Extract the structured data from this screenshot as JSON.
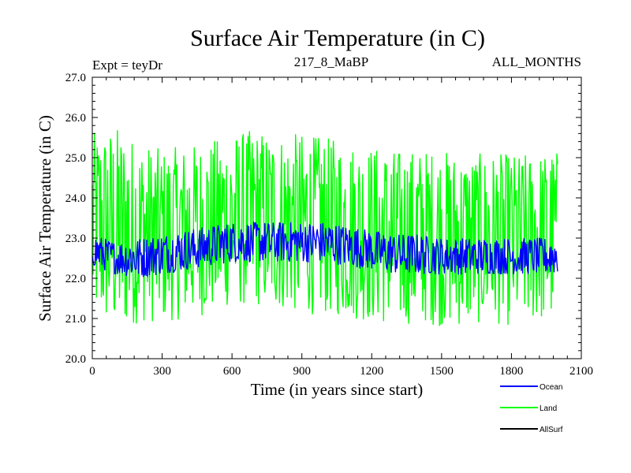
{
  "chart_data": {
    "type": "line",
    "title": "Surface Air Temperature (in C)",
    "subtitle_left": "Expt = teyDr",
    "subtitle_center": "217_8_MaBP",
    "subtitle_right": "ALL_MONTHS",
    "xlabel": "Time (in years since start)",
    "ylabel": "Surface Air Temperature (in C)",
    "xlim": [
      0,
      2100
    ],
    "ylim": [
      20.0,
      27.0
    ],
    "x_ticks": [
      0,
      300,
      600,
      900,
      1200,
      1500,
      1800,
      2100
    ],
    "x_tick_labels": [
      "0",
      "300",
      "600",
      "900",
      "1200",
      "1500",
      "1800",
      "2100"
    ],
    "y_ticks": [
      20,
      21,
      22,
      23,
      24,
      25,
      26,
      27
    ],
    "y_tick_labels": [
      "20.0",
      "21.0",
      "22.0",
      "23.0",
      "24.0",
      "25.0",
      "26.0",
      "27.0"
    ],
    "legend_position": "bottom-right, outside plot",
    "series": [
      {
        "name": "Land",
        "color": "#00ff00",
        "envelope_years": [
          0,
          100,
          200,
          300,
          400,
          500,
          600,
          700,
          800,
          900,
          1000,
          1100,
          1200,
          1300,
          1400,
          1500,
          1600,
          1700,
          1800,
          1900,
          2000
        ],
        "envelope_low": [
          21.0,
          20.6,
          20.9,
          20.9,
          21.0,
          21.1,
          21.3,
          21.3,
          21.2,
          21.1,
          21.1,
          21.0,
          20.9,
          20.8,
          20.9,
          20.8,
          20.8,
          20.9,
          20.8,
          20.9,
          20.9
        ],
        "envelope_high": [
          25.6,
          25.8,
          25.4,
          25.2,
          25.3,
          25.4,
          25.6,
          25.7,
          25.6,
          25.6,
          25.5,
          25.4,
          25.3,
          25.2,
          25.2,
          25.2,
          25.1,
          25.1,
          25.1,
          25.1,
          25.2
        ]
      },
      {
        "name": "Ocean",
        "color": "#0000ff",
        "envelope_years": [
          0,
          100,
          200,
          300,
          400,
          500,
          600,
          700,
          800,
          900,
          1000,
          1100,
          1200,
          1300,
          1400,
          1500,
          1600,
          1700,
          1800,
          1900,
          2000
        ],
        "envelope_low": [
          22.3,
          22.1,
          22.0,
          22.1,
          22.2,
          22.3,
          22.4,
          22.4,
          22.4,
          22.4,
          22.4,
          22.3,
          22.2,
          22.1,
          22.1,
          22.1,
          22.1,
          22.1,
          22.1,
          22.1,
          22.1
        ],
        "envelope_high": [
          23.1,
          22.9,
          23.0,
          23.1,
          23.2,
          23.3,
          23.4,
          23.4,
          23.4,
          23.4,
          23.4,
          23.3,
          23.2,
          23.1,
          23.1,
          23.0,
          23.0,
          23.0,
          23.0,
          23.0,
          23.0
        ]
      },
      {
        "name": "AllSurf",
        "color": "#000000"
      }
    ]
  }
}
